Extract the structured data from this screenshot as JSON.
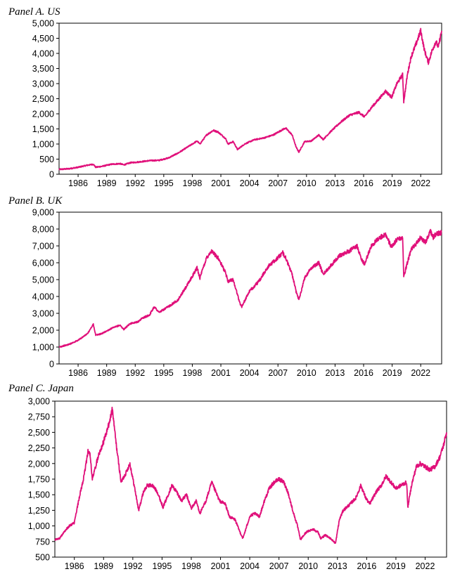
{
  "colors": {
    "series": "#E0107A",
    "axis": "#000000",
    "background": "#FFFFFF"
  },
  "chart_data": [
    {
      "type": "line",
      "title": "Panel A. US",
      "xlabel": "",
      "ylabel": "",
      "xlim": [
        1984.0,
        2024.2
      ],
      "ylim": [
        0,
        5000
      ],
      "y_ticks": [
        0,
        500,
        1000,
        1500,
        2000,
        2500,
        3000,
        3500,
        4000,
        4500,
        5000
      ],
      "y_tick_labels": [
        "0",
        "500",
        "1,000",
        "1,500",
        "2,000",
        "2,500",
        "3,000",
        "3,500",
        "4,000",
        "4,500",
        "5,000"
      ],
      "x_ticks": [
        1986,
        1989,
        1992,
        1995,
        1998,
        2001,
        2004,
        2007,
        2010,
        2013,
        2016,
        2019,
        2022
      ],
      "x_tick_labels": [
        "1986",
        "1989",
        "1992",
        "1995",
        "1998",
        "2001",
        "2004",
        "2007",
        "2010",
        "2013",
        "2016",
        "2019",
        "2022"
      ],
      "series": [
        {
          "name": "US",
          "x": [
            1984.0,
            1985.0,
            1986.0,
            1987.0,
            1987.6,
            1987.85,
            1988.5,
            1989.5,
            1990.4,
            1990.8,
            1991.5,
            1992.5,
            1993.5,
            1994.5,
            1995.5,
            1996.5,
            1997.5,
            1998.5,
            1998.8,
            1999.5,
            2000.2,
            2000.7,
            2001.5,
            2001.75,
            2002.3,
            2002.75,
            2003.5,
            2004.5,
            2005.5,
            2006.5,
            2007.5,
            2007.8,
            2008.5,
            2008.9,
            2009.2,
            2009.8,
            2010.5,
            2011.3,
            2011.75,
            2012.5,
            2013.5,
            2014.5,
            2015.5,
            2016.1,
            2016.8,
            2017.5,
            2018.3,
            2018.95,
            2019.5,
            2020.1,
            2020.22,
            2020.6,
            2021.0,
            2021.5,
            2022.0,
            2022.4,
            2022.8,
            2023.2,
            2023.6,
            2023.85,
            2024.2
          ],
          "y": [
            160,
            180,
            230,
            300,
            330,
            230,
            260,
            330,
            350,
            310,
            380,
            410,
            450,
            460,
            540,
            700,
            900,
            1100,
            1000,
            1300,
            1450,
            1400,
            1180,
            1000,
            1080,
            820,
            1000,
            1140,
            1200,
            1300,
            1480,
            1530,
            1300,
            900,
            730,
            1080,
            1100,
            1300,
            1150,
            1400,
            1700,
            1950,
            2050,
            1900,
            2200,
            2450,
            2750,
            2550,
            3000,
            3300,
            2400,
            3300,
            3900,
            4300,
            4750,
            4100,
            3700,
            4100,
            4400,
            4200,
            4750
          ]
        }
      ]
    },
    {
      "type": "line",
      "title": "Panel B. UK",
      "xlabel": "",
      "ylabel": "",
      "xlim": [
        1984.0,
        2024.2
      ],
      "ylim": [
        0,
        9000
      ],
      "y_ticks": [
        0,
        1000,
        2000,
        3000,
        4000,
        5000,
        6000,
        7000,
        8000,
        9000
      ],
      "y_tick_labels": [
        "0",
        "1,000",
        "2,000",
        "3,000",
        "4,000",
        "5,000",
        "6,000",
        "7,000",
        "8,000",
        "9,000"
      ],
      "x_ticks": [
        1986,
        1989,
        1992,
        1995,
        1998,
        2001,
        2004,
        2007,
        2010,
        2013,
        2016,
        2019,
        2022
      ],
      "x_tick_labels": [
        "1986",
        "1989",
        "1992",
        "1995",
        "1998",
        "2001",
        "2004",
        "2007",
        "2010",
        "2013",
        "2016",
        "2019",
        "2022"
      ],
      "series": [
        {
          "name": "UK",
          "x": [
            1984.0,
            1985.0,
            1986.0,
            1987.0,
            1987.6,
            1987.85,
            1988.5,
            1989.5,
            1990.4,
            1990.8,
            1991.5,
            1992.3,
            1992.7,
            1993.5,
            1994.0,
            1994.5,
            1995.5,
            1996.5,
            1997.5,
            1998.5,
            1998.8,
            1999.5,
            2000.0,
            2000.7,
            2001.5,
            2001.75,
            2002.3,
            2003.0,
            2003.2,
            2004.0,
            2005.0,
            2006.0,
            2007.0,
            2007.5,
            2007.8,
            2008.5,
            2008.9,
            2009.2,
            2009.8,
            2010.5,
            2011.3,
            2011.75,
            2012.5,
            2013.4,
            2014.5,
            2015.3,
            2015.8,
            2016.1,
            2016.8,
            2017.5,
            2018.3,
            2018.95,
            2019.5,
            2020.1,
            2020.22,
            2020.6,
            2021.0,
            2021.5,
            2022.0,
            2022.5,
            2023.0,
            2023.3,
            2023.6,
            2024.2
          ],
          "y": [
            1000,
            1150,
            1400,
            1800,
            2350,
            1700,
            1800,
            2100,
            2300,
            2050,
            2400,
            2500,
            2700,
            2900,
            3400,
            3050,
            3400,
            3800,
            4700,
            5700,
            5100,
            6300,
            6700,
            6300,
            5400,
            4900,
            5000,
            3600,
            3400,
            4300,
            4900,
            5800,
            6300,
            6600,
            6300,
            5300,
            4300,
            3800,
            5100,
            5700,
            6000,
            5300,
            5800,
            6400,
            6700,
            7000,
            6200,
            5900,
            7000,
            7400,
            7700,
            6900,
            7400,
            7500,
            5200,
            6000,
            6800,
            7100,
            7500,
            7200,
            7900,
            7500,
            7700,
            7800
          ]
        }
      ]
    },
    {
      "type": "line",
      "title": "Panel C. Japan",
      "xlabel": "",
      "ylabel": "",
      "xlim": [
        1984.0,
        2024.2
      ],
      "ylim": [
        500,
        3000
      ],
      "y_ticks": [
        500,
        750,
        1000,
        1250,
        1500,
        1750,
        2000,
        2250,
        2500,
        2750,
        3000
      ],
      "y_tick_labels": [
        "500",
        "750",
        "1,000",
        "1,250",
        "1,500",
        "1,750",
        "2,000",
        "2,250",
        "2,500",
        "2,750",
        "3,000"
      ],
      "x_ticks": [
        1986,
        1989,
        1992,
        1995,
        1998,
        2001,
        2004,
        2007,
        2010,
        2013,
        2016,
        2019,
        2022
      ],
      "x_tick_labels": [
        "1986",
        "1989",
        "1992",
        "1995",
        "1998",
        "2001",
        "2004",
        "2007",
        "2010",
        "2013",
        "2016",
        "2019",
        "2022"
      ],
      "series": [
        {
          "name": "Japan",
          "x": [
            1984.0,
            1984.5,
            1985.0,
            1985.5,
            1986.0,
            1986.5,
            1987.0,
            1987.4,
            1987.6,
            1987.85,
            1988.5,
            1989.0,
            1989.5,
            1989.9,
            1990.3,
            1990.8,
            1991.3,
            1991.7,
            1992.2,
            1992.6,
            1993.1,
            1993.5,
            1994.0,
            1994.5,
            1995.1,
            1995.5,
            1996.0,
            1996.5,
            1997.0,
            1997.5,
            1998.0,
            1998.5,
            1998.9,
            1999.5,
            2000.1,
            2000.5,
            2000.9,
            2001.5,
            2001.9,
            2002.5,
            2003.0,
            2003.3,
            2004.0,
            2004.5,
            2005.0,
            2005.5,
            2006.0,
            2006.5,
            2007.0,
            2007.5,
            2007.9,
            2008.5,
            2008.9,
            2009.2,
            2009.8,
            2010.5,
            2011.0,
            2011.3,
            2011.75,
            2012.3,
            2012.8,
            2013.2,
            2013.6,
            2014.3,
            2014.9,
            2015.4,
            2015.9,
            2016.3,
            2017.0,
            2017.5,
            2018.0,
            2018.5,
            2019.0,
            2019.5,
            2020.1,
            2020.22,
            2020.6,
            2021.1,
            2021.5,
            2022.0,
            2022.5,
            2023.0,
            2023.5,
            2023.9,
            2024.2
          ],
          "y": [
            780,
            800,
            920,
            1000,
            1050,
            1450,
            1800,
            2200,
            2150,
            1750,
            2150,
            2350,
            2600,
            2870,
            2300,
            1700,
            1850,
            2000,
            1600,
            1250,
            1550,
            1650,
            1650,
            1550,
            1300,
            1450,
            1650,
            1550,
            1400,
            1500,
            1280,
            1400,
            1200,
            1400,
            1700,
            1550,
            1400,
            1350,
            1150,
            1100,
            900,
            800,
            1150,
            1200,
            1150,
            1400,
            1600,
            1700,
            1750,
            1700,
            1550,
            1200,
            1000,
            780,
            900,
            950,
            900,
            800,
            850,
            800,
            720,
            1100,
            1250,
            1350,
            1450,
            1650,
            1450,
            1350,
            1550,
            1650,
            1800,
            1700,
            1600,
            1650,
            1700,
            1300,
            1650,
            1950,
            2000,
            1950,
            1900,
            1950,
            2100,
            2300,
            2500
          ]
        }
      ]
    }
  ]
}
